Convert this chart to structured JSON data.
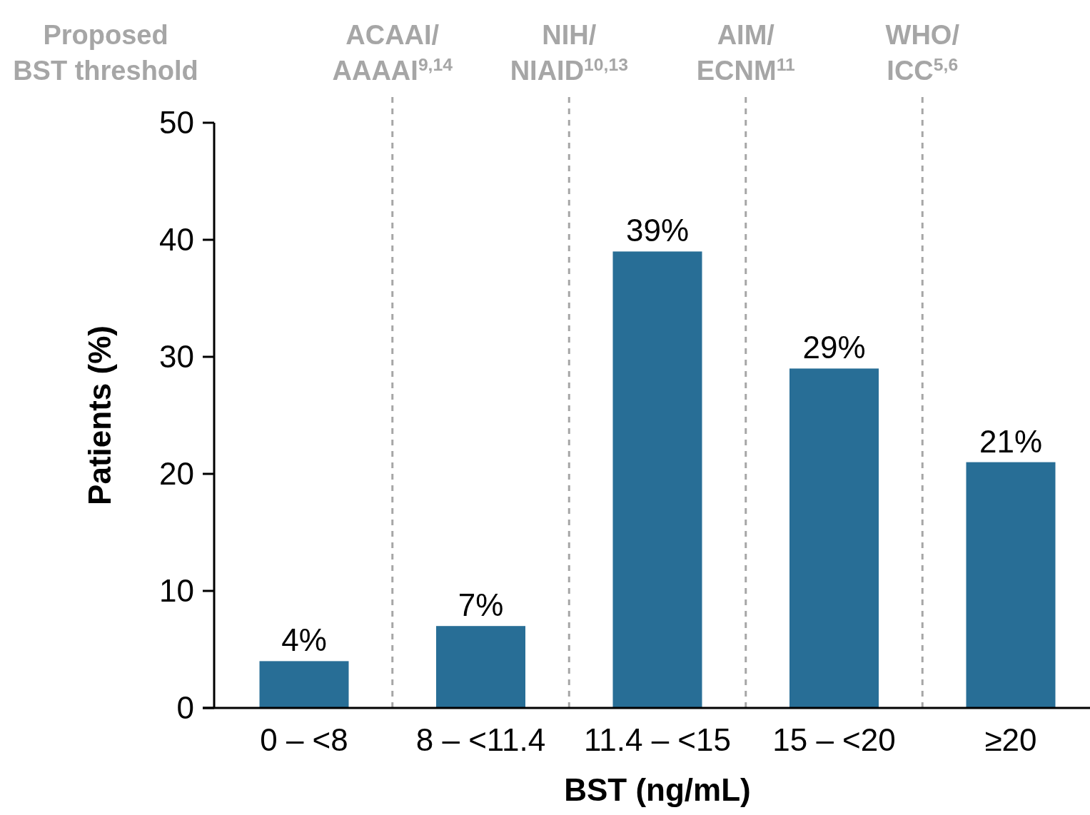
{
  "chart_data": {
    "type": "bar",
    "xlabel": "BST (ng/mL)",
    "ylabel": "Patients (%)",
    "categories": [
      "0 – <8",
      "8 – <11.4",
      "11.4 – <15",
      "15 – <20",
      "≥20"
    ],
    "values": [
      4,
      7,
      39,
      29,
      21
    ],
    "value_labels": [
      "4%",
      "7%",
      "39%",
      "29%",
      "21%"
    ],
    "color": "#286e96",
    "ylim": [
      0,
      50
    ],
    "yticks": [
      0,
      10,
      20,
      30,
      40,
      50
    ],
    "grid": false,
    "annotations": [
      "Proposed\nBST threshold",
      "ACAAI/\nAAAAI$^{9,14}$",
      "NIH/\nNIAID$^{10,13}$",
      "AIM/\nECNM$^{11}$",
      "WHO/\nICC$^{5,6}$"
    ]
  }
}
